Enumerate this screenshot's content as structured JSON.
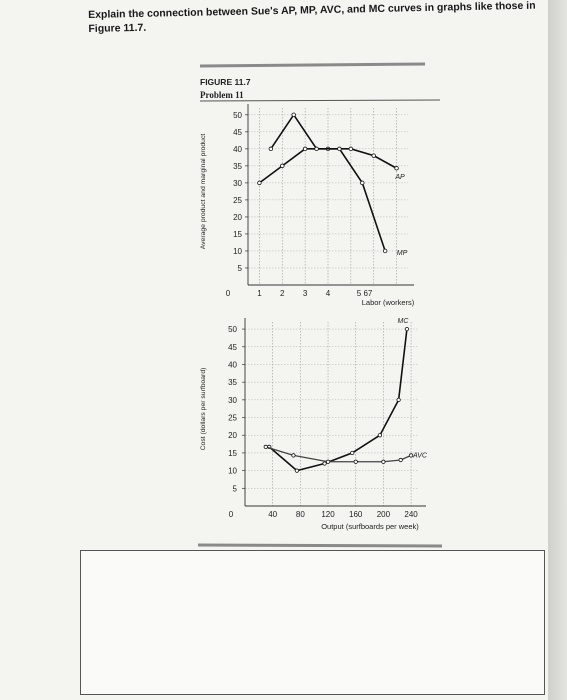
{
  "question": {
    "line1": "Explain the connection between Sue's AP, MP, AVC, and MC curves in graphs like those in",
    "line2": "Figure 11.7."
  },
  "figure": {
    "label": "FIGURE 11.7",
    "problem": "Problem 11"
  },
  "chart_data": [
    {
      "type": "line",
      "xlabel": "Labor (workers)",
      "ylabel": "Average product and marginal product",
      "x_ticks": [
        "1",
        "2",
        "3",
        "4",
        "5",
        "6",
        "7"
      ],
      "x_tick_text": [
        "0",
        "1",
        "2",
        "3",
        "4",
        "5 67"
      ],
      "y_ticks": [
        5,
        10,
        15,
        20,
        25,
        30,
        35,
        40,
        45,
        50
      ],
      "ylim": [
        0,
        52
      ],
      "series": [
        {
          "name": "AP",
          "x": [
            1,
            2,
            3,
            4,
            5,
            6,
            7
          ],
          "y": [
            30,
            35,
            40,
            40,
            40,
            38,
            34.3
          ]
        },
        {
          "name": "MP",
          "x": [
            1.5,
            2.5,
            3.5,
            4.5,
            5.5,
            6.5
          ],
          "y": [
            40,
            50,
            40,
            40,
            30,
            10
          ]
        }
      ]
    },
    {
      "type": "line",
      "xlabel": "Output (surfboards per week)",
      "ylabel": "Cost (dollars per surfboard)",
      "x_ticks": [
        40,
        80,
        120,
        160,
        200,
        240
      ],
      "y_ticks": [
        5,
        10,
        15,
        20,
        25,
        30,
        35,
        40,
        45,
        50
      ],
      "ylim": [
        0,
        52
      ],
      "series": [
        {
          "name": "MC",
          "x": [
            35,
            75,
            115,
            155,
            195,
            222,
            234
          ],
          "y": [
            16.7,
            10,
            12,
            15,
            20,
            30,
            50
          ]
        },
        {
          "name": "AVC",
          "x": [
            30,
            70,
            120,
            160,
            200,
            225,
            240
          ],
          "y": [
            16.7,
            14.3,
            12.5,
            12.5,
            12.5,
            13,
            14.3
          ]
        }
      ]
    }
  ]
}
